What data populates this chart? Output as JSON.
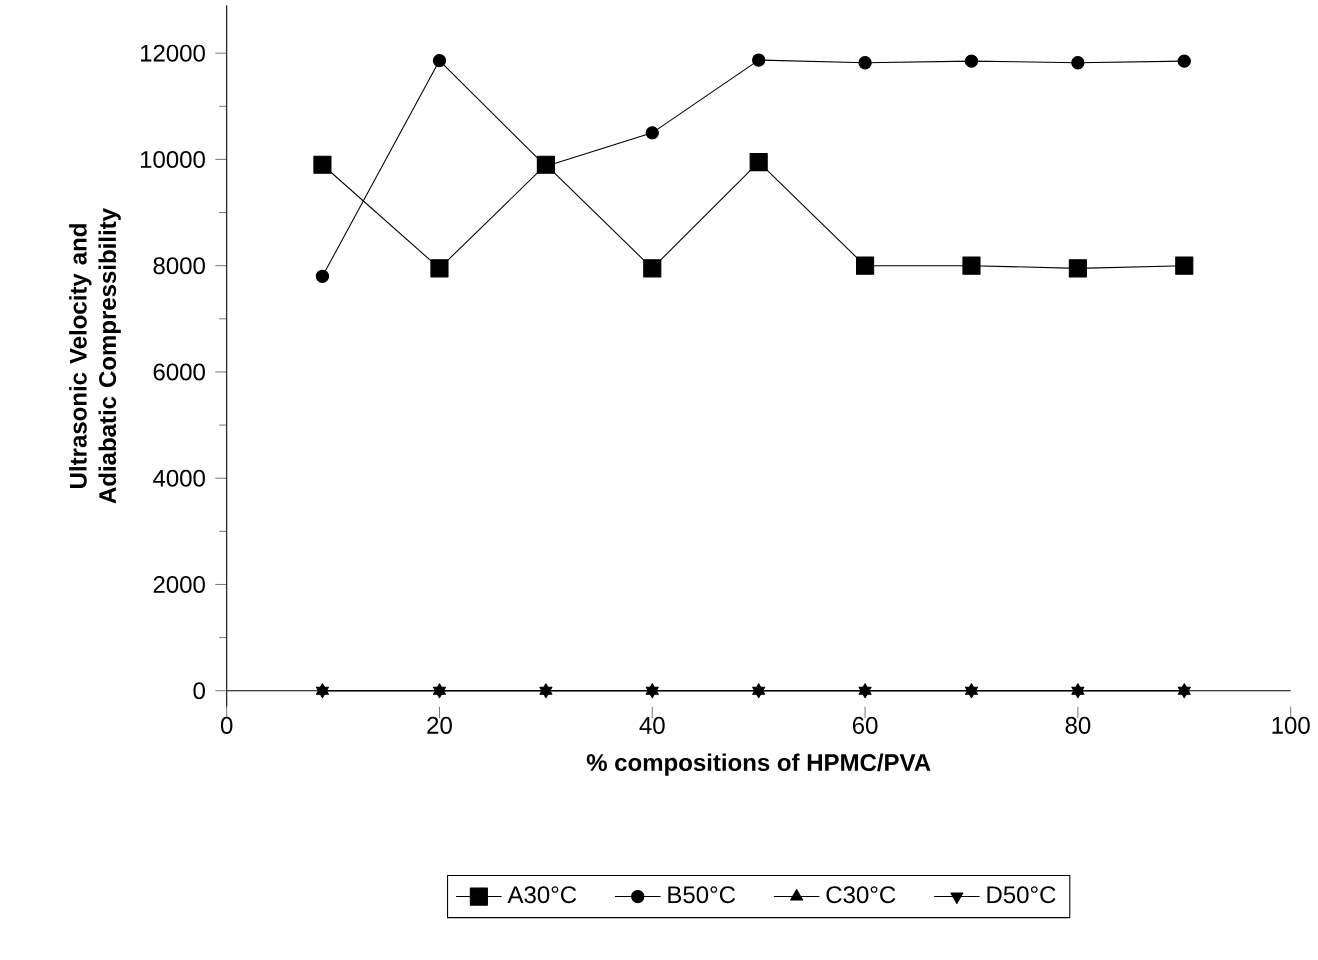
{
  "chart_data": {
    "type": "line",
    "xlabel": "% compositions of HPMC/PVA",
    "ylabel": "Ultrasonic Velocity and Adiabatic Compressibility",
    "x": [
      9,
      20,
      30,
      40,
      50,
      60,
      70,
      80,
      90
    ],
    "series": [
      {
        "name": "A30°C",
        "color": "#000000",
        "marker": "square",
        "values": [
          9900,
          7950,
          9900,
          7950,
          9950,
          8000,
          8000,
          7950,
          8000
        ]
      },
      {
        "name": "B50°C",
        "color": "#000000",
        "marker": "circle",
        "values": [
          7800,
          11860,
          9870,
          10500,
          11870,
          11820,
          11850,
          11820,
          11850
        ]
      },
      {
        "name": "C30°C",
        "color": "#000000",
        "marker": "triangle",
        "values": [
          0,
          0,
          0,
          0,
          0,
          0,
          0,
          0,
          0
        ]
      },
      {
        "name": "D50°C",
        "color": "#000000",
        "marker": "triangle down",
        "values": [
          0,
          0,
          0,
          0,
          0,
          0,
          0,
          0,
          0
        ]
      }
    ],
    "xlim": [
      0,
      100
    ],
    "xticks": [
      0,
      20,
      40,
      60,
      80,
      100
    ],
    "ylim": [
      -300,
      12900
    ],
    "yticks": [
      0,
      2000,
      4000,
      6000,
      8000,
      10000,
      12000
    ],
    "legend": "bottom",
    "line_style": "solid"
  }
}
